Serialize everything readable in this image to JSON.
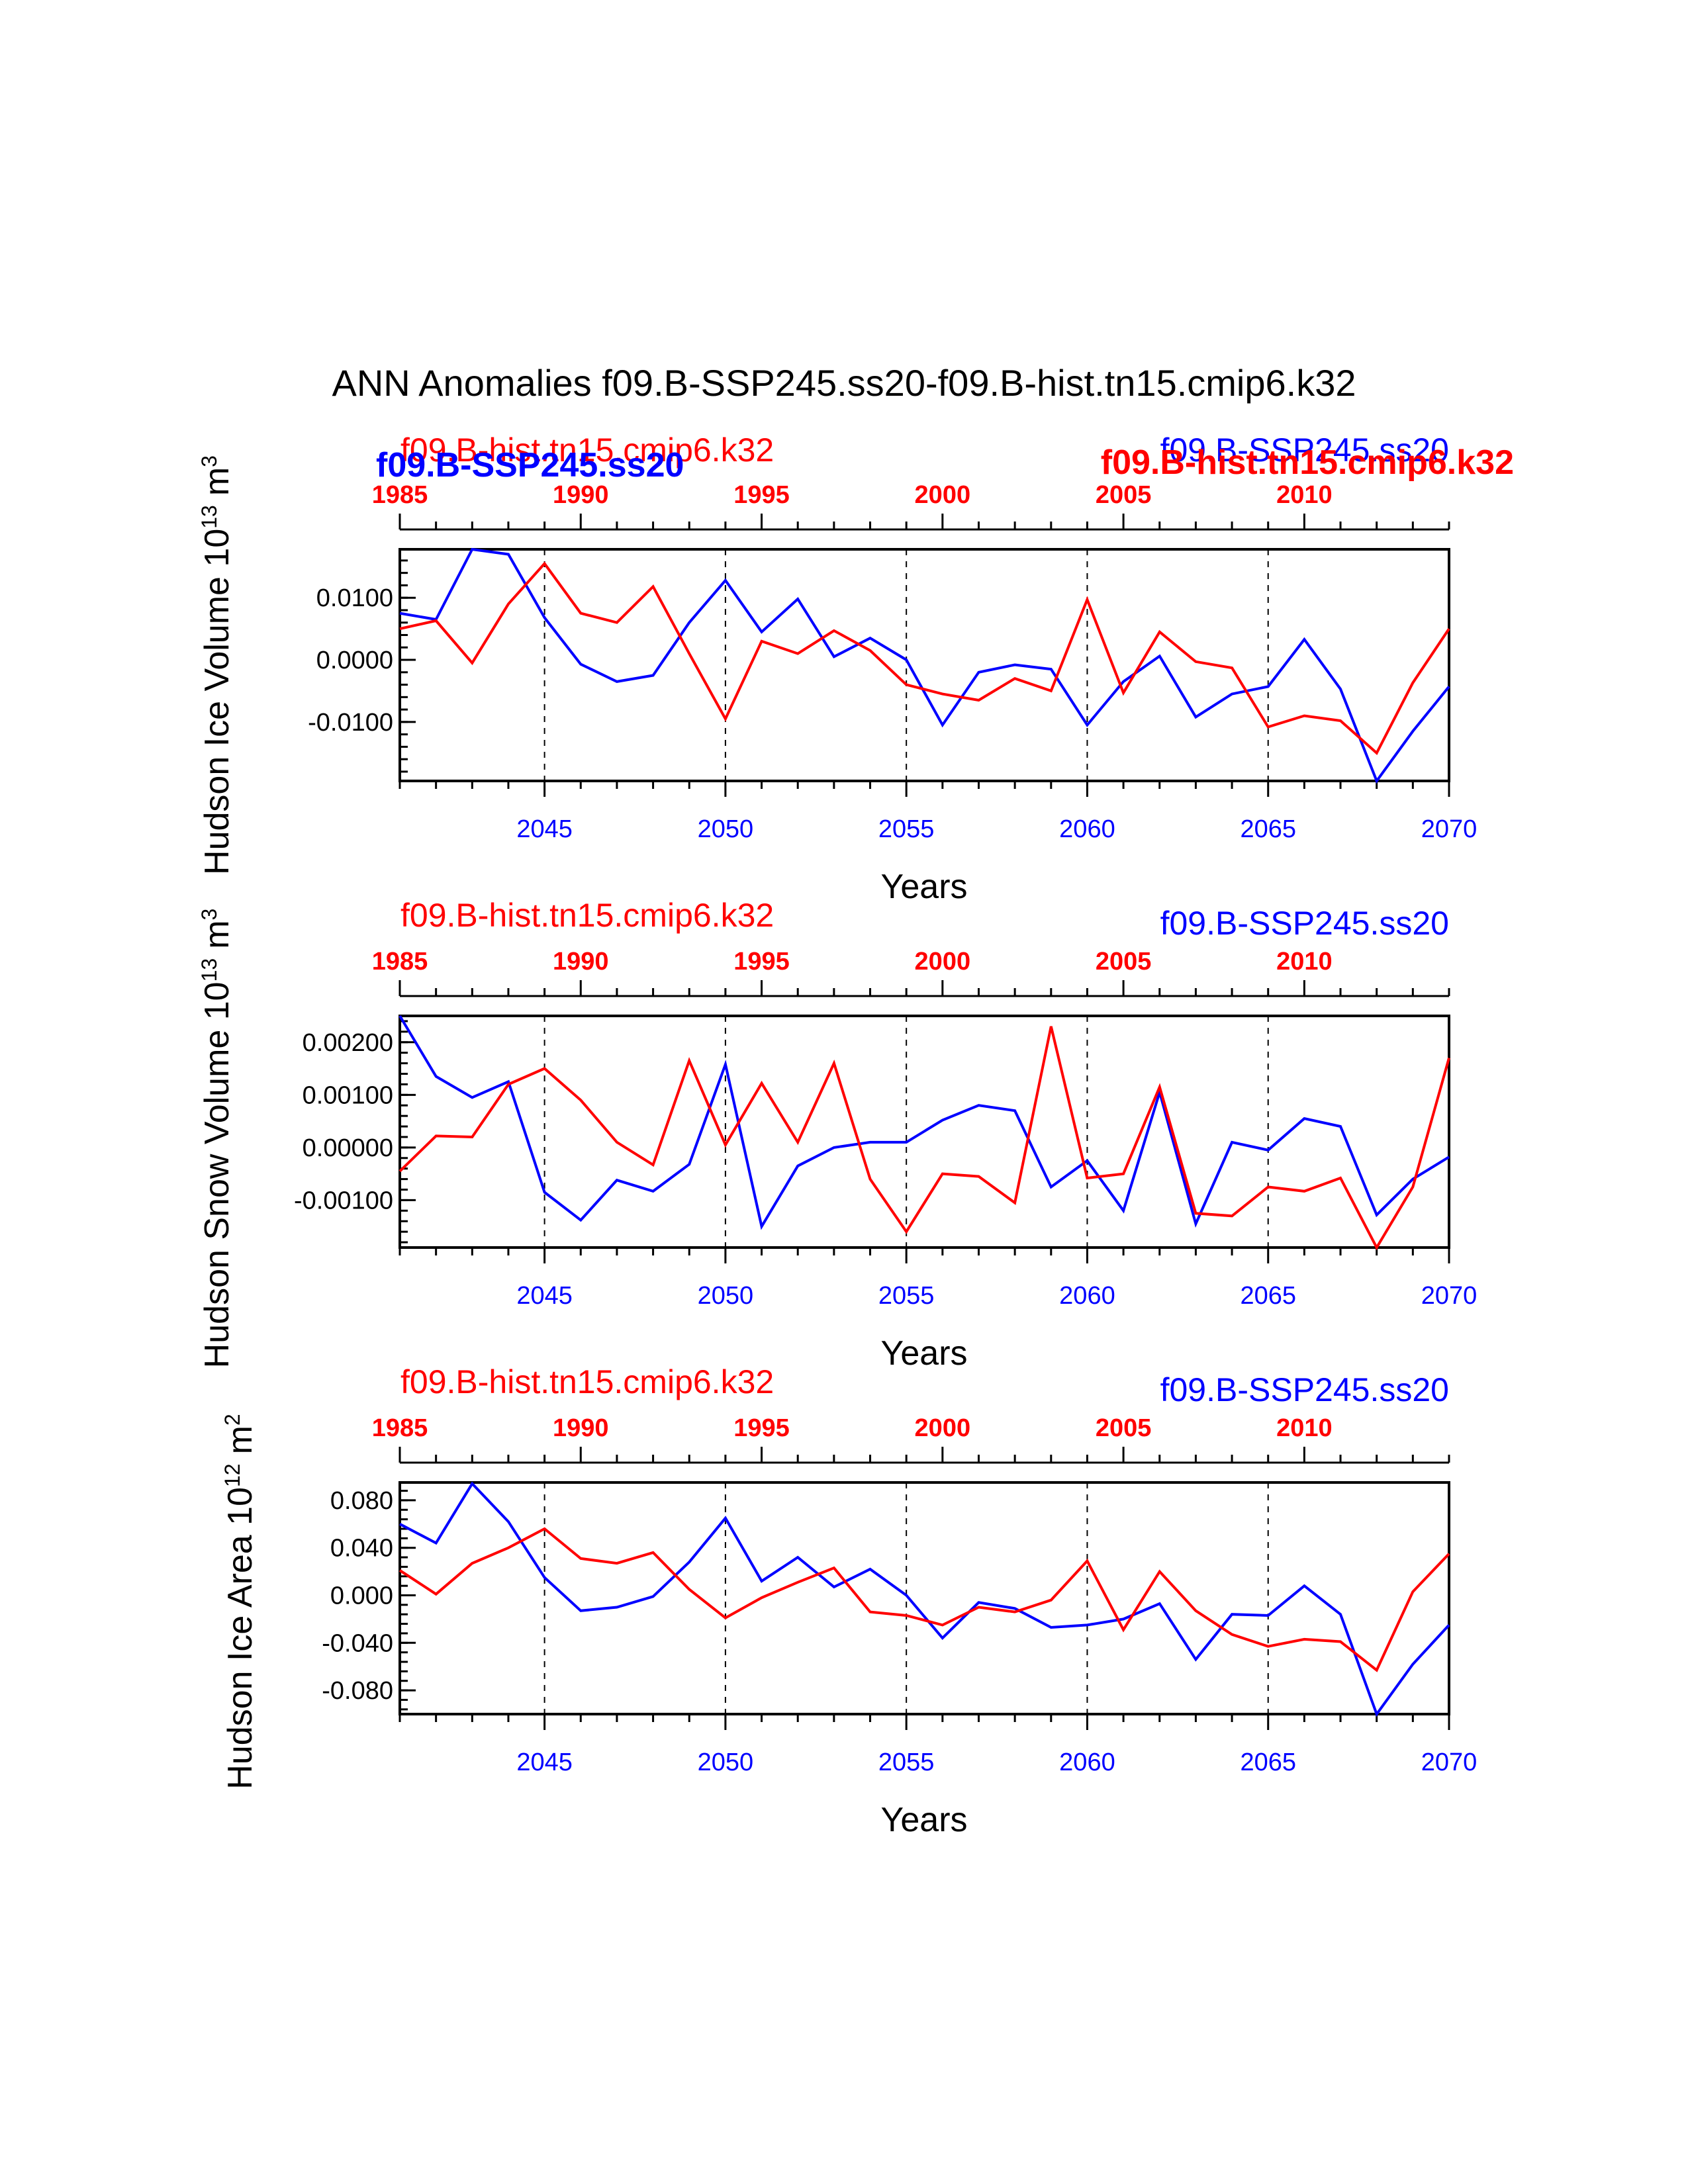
{
  "figure": {
    "title": "ANN Anomalies f09.B-SSP245.ss20-f09.B-hist.tn15.cmip6.k32",
    "run_a": "f09.B-SSP245.ss20",
    "run_b": "f09.B-hist.tn15.cmip6.k32",
    "colors": {
      "run_a": "#0000ff",
      "run_b": "#ff0000",
      "axes": "#000000"
    }
  },
  "chart_data": [
    {
      "type": "line",
      "ylabel": "Hudson Ice Volume 10",
      "ylabel_exp": "13",
      "ylabel_unit": "m",
      "ylabel_unit_exp": "3",
      "xlabel": "Years",
      "xlim": [
        2041,
        2070
      ],
      "x_ticks": [
        "2045",
        "2050",
        "2055",
        "2060",
        "2065",
        "2070"
      ],
      "top_xlim": [
        1985,
        2014
      ],
      "top_ticks": [
        "1985",
        "1990",
        "1995",
        "2000",
        "2005",
        "2010"
      ],
      "ylim": [
        -0.0195,
        0.0178
      ],
      "y_ticks": [
        "0.0100",
        "0.0000",
        "-0.0100"
      ],
      "y_tick_values": [
        0.01,
        0.0,
        -0.01
      ],
      "grid": "dashed vertical lines every 5 years",
      "series": [
        {
          "name": "f09.B-SSP245.ss20",
          "color": "#0000ff",
          "x": [
            2041,
            2042,
            2043,
            2044,
            2045,
            2046,
            2047,
            2048,
            2049,
            2050,
            2051,
            2052,
            2053,
            2054,
            2055,
            2056,
            2057,
            2058,
            2059,
            2060,
            2061,
            2062,
            2063,
            2064,
            2065,
            2066,
            2067,
            2068,
            2069,
            2070
          ],
          "values": [
            0.0075,
            0.0065,
            0.0178,
            0.017,
            0.0068,
            -0.0007,
            -0.0035,
            -0.0025,
            0.006,
            0.0128,
            0.0045,
            0.0098,
            0.0005,
            0.0035,
            0.0,
            -0.0105,
            -0.002,
            -0.0008,
            -0.0015,
            -0.0105,
            -0.0035,
            0.0006,
            -0.0092,
            -0.0055,
            -0.0043,
            0.0033,
            -0.0047,
            -0.0195,
            -0.0115,
            -0.0043
          ]
        },
        {
          "name": "f09.B-hist.tn15.cmip6.k32",
          "color": "#ff0000",
          "x": [
            2041,
            2042,
            2043,
            2044,
            2045,
            2046,
            2047,
            2048,
            2049,
            2050,
            2051,
            2052,
            2053,
            2054,
            2055,
            2056,
            2057,
            2058,
            2059,
            2060,
            2061,
            2062,
            2063,
            2064,
            2065,
            2066,
            2067,
            2068,
            2069,
            2070
          ],
          "values": [
            0.005,
            0.0063,
            -0.0005,
            0.009,
            0.0155,
            0.0075,
            0.006,
            0.0118,
            0.001,
            -0.0095,
            0.003,
            0.001,
            0.0047,
            0.0015,
            -0.004,
            -0.0055,
            -0.0065,
            -0.003,
            -0.005,
            0.0097,
            -0.0053,
            0.0045,
            -0.0003,
            -0.0013,
            -0.0108,
            -0.009,
            -0.0098,
            -0.015,
            -0.0037,
            0.005
          ]
        }
      ]
    },
    {
      "type": "line",
      "ylabel": "Hudson Snow Volume 10",
      "ylabel_exp": "13",
      "ylabel_unit": "m",
      "ylabel_unit_exp": "3",
      "xlabel": "Years",
      "xlim": [
        2041,
        2070
      ],
      "x_ticks": [
        "2045",
        "2050",
        "2055",
        "2060",
        "2065",
        "2070"
      ],
      "top_xlim": [
        1985,
        2014
      ],
      "top_ticks": [
        "1985",
        "1990",
        "1995",
        "2000",
        "2005",
        "2010"
      ],
      "ylim": [
        -0.0019,
        0.0025
      ],
      "y_ticks": [
        "0.00200",
        "0.00100",
        "0.00000",
        "-0.00100"
      ],
      "y_tick_values": [
        0.002,
        0.001,
        0.0,
        -0.001
      ],
      "grid": "dashed vertical lines every 5 years",
      "series": [
        {
          "name": "f09.B-SSP245.ss20",
          "color": "#0000ff",
          "x": [
            2041,
            2042,
            2043,
            2044,
            2045,
            2046,
            2047,
            2048,
            2049,
            2050,
            2051,
            2052,
            2053,
            2054,
            2055,
            2056,
            2057,
            2058,
            2059,
            2060,
            2061,
            2062,
            2063,
            2064,
            2065,
            2066,
            2067,
            2068,
            2069,
            2070
          ],
          "values": [
            0.0025,
            0.00135,
            0.00095,
            0.00125,
            -0.00085,
            -0.00138,
            -0.00062,
            -0.00083,
            -0.00032,
            0.00158,
            -0.0015,
            -0.00035,
            0.0,
            0.0001,
            0.0001,
            0.00052,
            0.0008,
            0.0007,
            -0.00075,
            -0.00025,
            -0.0012,
            0.00105,
            -0.00145,
            0.0001,
            -5e-05,
            0.00055,
            0.0004,
            -0.00128,
            -0.0006,
            -0.00018
          ]
        },
        {
          "name": "f09.B-hist.tn15.cmip6.k32",
          "color": "#ff0000",
          "x": [
            2041,
            2042,
            2043,
            2044,
            2045,
            2046,
            2047,
            2048,
            2049,
            2050,
            2051,
            2052,
            2053,
            2054,
            2055,
            2056,
            2057,
            2058,
            2059,
            2060,
            2061,
            2062,
            2063,
            2064,
            2065,
            2066,
            2067,
            2068,
            2069,
            2070
          ],
          "values": [
            -0.00045,
            0.00022,
            0.0002,
            0.0012,
            0.0015,
            0.0009,
            0.0001,
            -0.00033,
            0.00165,
            5e-05,
            0.00122,
            0.0001,
            0.0016,
            -0.0006,
            -0.0016,
            -0.0005,
            -0.00055,
            -0.00105,
            0.0023,
            -0.00058,
            -0.0005,
            0.00115,
            -0.00125,
            -0.0013,
            -0.00075,
            -0.00083,
            -0.00058,
            -0.0019,
            -0.00075,
            0.0017
          ]
        }
      ]
    },
    {
      "type": "line",
      "ylabel": "Hudson Ice Area 10",
      "ylabel_exp": "12",
      "ylabel_unit": "m",
      "ylabel_unit_exp": "2",
      "xlabel": "Years",
      "xlim": [
        2041,
        2070
      ],
      "x_ticks": [
        "2045",
        "2050",
        "2055",
        "2060",
        "2065",
        "2070"
      ],
      "top_xlim": [
        1985,
        2014
      ],
      "top_ticks": [
        "1985",
        "1990",
        "1995",
        "2000",
        "2005",
        "2010"
      ],
      "ylim": [
        -0.1,
        0.095
      ],
      "y_ticks": [
        "0.080",
        "0.040",
        "0.000",
        "-0.040",
        "-0.080"
      ],
      "y_tick_values": [
        0.08,
        0.04,
        0.0,
        -0.04,
        -0.08
      ],
      "grid": "dashed vertical lines every 5 years",
      "series": [
        {
          "name": "f09.B-SSP245.ss20",
          "color": "#0000ff",
          "x": [
            2041,
            2042,
            2043,
            2044,
            2045,
            2046,
            2047,
            2048,
            2049,
            2050,
            2051,
            2052,
            2053,
            2054,
            2055,
            2056,
            2057,
            2058,
            2059,
            2060,
            2061,
            2062,
            2063,
            2064,
            2065,
            2066,
            2067,
            2068,
            2069,
            2070
          ],
          "values": [
            0.06,
            0.044,
            0.094,
            0.062,
            0.015,
            -0.013,
            -0.01,
            -0.001,
            0.028,
            0.065,
            0.012,
            0.032,
            0.007,
            0.022,
            0.0,
            -0.036,
            -0.006,
            -0.011,
            -0.027,
            -0.025,
            -0.02,
            -0.007,
            -0.054,
            -0.016,
            -0.017,
            0.008,
            -0.016,
            -0.1,
            -0.058,
            -0.025
          ]
        },
        {
          "name": "f09.B-hist.tn15.cmip6.k32",
          "color": "#ff0000",
          "x": [
            2041,
            2042,
            2043,
            2044,
            2045,
            2046,
            2047,
            2048,
            2049,
            2050,
            2051,
            2052,
            2053,
            2054,
            2055,
            2056,
            2057,
            2058,
            2059,
            2060,
            2061,
            2062,
            2063,
            2064,
            2065,
            2066,
            2067,
            2068,
            2069,
            2070
          ],
          "values": [
            0.021,
            0.001,
            0.027,
            0.04,
            0.056,
            0.031,
            0.027,
            0.036,
            0.005,
            -0.019,
            -0.002,
            0.011,
            0.023,
            -0.014,
            -0.017,
            -0.025,
            -0.01,
            -0.014,
            -0.004,
            0.029,
            -0.029,
            0.02,
            -0.013,
            -0.033,
            -0.043,
            -0.037,
            -0.039,
            -0.063,
            0.003,
            0.035
          ]
        }
      ]
    }
  ]
}
